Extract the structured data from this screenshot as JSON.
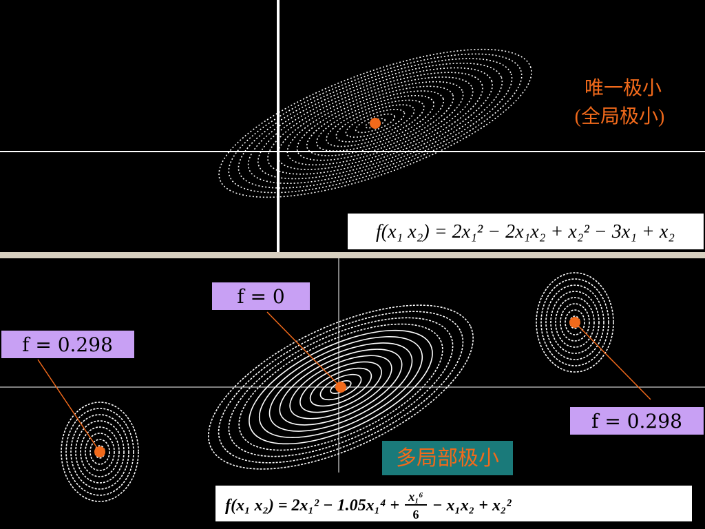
{
  "top": {
    "label_line1": "唯一极小",
    "label_line2": "(全局极小)",
    "formula": "f(x₁  x₂) = 2x₁² − 2x₁x₂ + x₂² − 3x₁ + x₂"
  },
  "bottom": {
    "center_label": "f = 0",
    "left_label": "f = 0.298",
    "right_label": "f = 0.298",
    "caption": "多局部极小",
    "formula": {
      "before": "f(x₁  x₂) = 2x₁² − 1.05x₁⁴ +",
      "numerator": "x₁⁶",
      "denominator": "6",
      "after": "− x₁x₂ + x₂²"
    }
  }
}
